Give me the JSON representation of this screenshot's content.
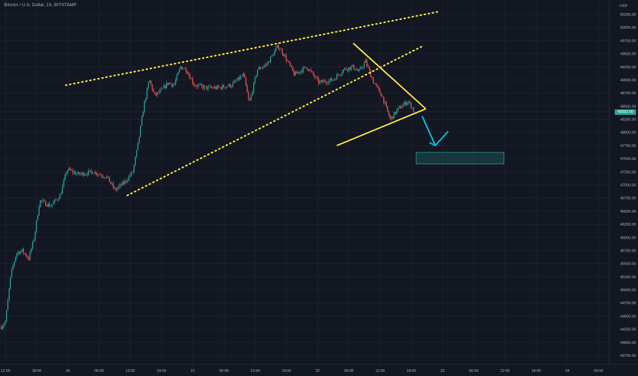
{
  "header": {
    "symbol_title": "Bitcoin / U.S. Dollar, 15, BITSTAMP",
    "currency": "USD",
    "last_price": "48392.00"
  },
  "theme": {
    "background": "#131722",
    "grid": "#1e2230",
    "up_color": "#26a69a",
    "down_color": "#ef5350",
    "drawing_yellow": "#ffeb3b",
    "arrow_color": "#00bcd4",
    "target_box_color": "#26a69a",
    "axis_text": "#b2b5be"
  },
  "chart_data": {
    "type": "candlestick",
    "title": "Bitcoin / U.S. Dollar, 15, BITSTAMP",
    "ylabel": "USD",
    "ylim": [
      43600,
      50350
    ],
    "grid": true,
    "y_ticks": [
      "50250.00",
      "50000.00",
      "49750.00",
      "49500.00",
      "49250.00",
      "49000.00",
      "48750.00",
      "48500.00",
      "48250.00",
      "48000.00",
      "47750.00",
      "47500.00",
      "47250.00",
      "47000.00",
      "46750.00",
      "46500.00",
      "46250.00",
      "46000.00",
      "45750.00",
      "45500.00",
      "45250.00",
      "45000.00",
      "44750.00",
      "44500.00",
      "44250.00",
      "44000.00",
      "43750.00"
    ],
    "x_ticks": [
      "12:00",
      "18:00",
      "20",
      "06:00",
      "12:00",
      "18:00",
      "21",
      "06:00",
      "12:00",
      "18:00",
      "22",
      "06:00",
      "12:00",
      "18:00",
      "23",
      "06:00",
      "12:00",
      "18:00",
      "24",
      "06:00"
    ],
    "close_anchors": [
      {
        "t": 0,
        "price": 44300
      },
      {
        "t": 6,
        "price": 44400
      },
      {
        "t": 14,
        "price": 45300
      },
      {
        "t": 22,
        "price": 45700
      },
      {
        "t": 30,
        "price": 45750
      },
      {
        "t": 40,
        "price": 45600
      },
      {
        "t": 48,
        "price": 46000
      },
      {
        "t": 56,
        "price": 46700
      },
      {
        "t": 72,
        "price": 46600
      },
      {
        "t": 86,
        "price": 46800
      },
      {
        "t": 96,
        "price": 47300
      },
      {
        "t": 112,
        "price": 47200
      },
      {
        "t": 134,
        "price": 47250
      },
      {
        "t": 154,
        "price": 47150
      },
      {
        "t": 166,
        "price": 46900
      },
      {
        "t": 180,
        "price": 47050
      },
      {
        "t": 192,
        "price": 47250
      },
      {
        "t": 200,
        "price": 47800
      },
      {
        "t": 208,
        "price": 48500
      },
      {
        "t": 216,
        "price": 49000
      },
      {
        "t": 224,
        "price": 48700
      },
      {
        "t": 234,
        "price": 48800
      },
      {
        "t": 244,
        "price": 48950
      },
      {
        "t": 252,
        "price": 48900
      },
      {
        "t": 262,
        "price": 49250
      },
      {
        "t": 270,
        "price": 49200
      },
      {
        "t": 282,
        "price": 48900
      },
      {
        "t": 300,
        "price": 48850
      },
      {
        "t": 316,
        "price": 48850
      },
      {
        "t": 336,
        "price": 48900
      },
      {
        "t": 354,
        "price": 49100
      },
      {
        "t": 362,
        "price": 48550
      },
      {
        "t": 374,
        "price": 49200
      },
      {
        "t": 388,
        "price": 49300
      },
      {
        "t": 404,
        "price": 49650
      },
      {
        "t": 412,
        "price": 49500
      },
      {
        "t": 428,
        "price": 49100
      },
      {
        "t": 446,
        "price": 49250
      },
      {
        "t": 464,
        "price": 48950
      },
      {
        "t": 484,
        "price": 49000
      },
      {
        "t": 500,
        "price": 49200
      },
      {
        "t": 514,
        "price": 49250
      },
      {
        "t": 522,
        "price": 49150
      },
      {
        "t": 532,
        "price": 49350
      },
      {
        "t": 544,
        "price": 48950
      },
      {
        "t": 556,
        "price": 48700
      },
      {
        "t": 568,
        "price": 48250
      },
      {
        "t": 580,
        "price": 48450
      },
      {
        "t": 594,
        "price": 48600
      },
      {
        "t": 604,
        "price": 48392
      }
    ],
    "annotations": {
      "upper_channel_line": {
        "t": [
          96,
          640
        ],
        "price": [
          48900,
          50300
        ],
        "style": "dotted"
      },
      "lower_channel_line": {
        "t": [
          186,
          618
        ],
        "price": [
          46800,
          49650
        ],
        "style": "dotted"
      },
      "triangle_upper": {
        "t": [
          516,
          622
        ],
        "price": [
          49700,
          48450
        ],
        "style": "solid"
      },
      "triangle_lower": {
        "t": [
          492,
          622
        ],
        "price": [
          47750,
          48450
        ],
        "style": "solid"
      },
      "arrow": {
        "from": {
          "t": 617,
          "price": 48300
        },
        "to": {
          "t": 636,
          "price": 47750
        }
      },
      "target_zone": {
        "t": [
          608,
          736
        ],
        "price": [
          47400,
          47620
        ]
      }
    }
  }
}
